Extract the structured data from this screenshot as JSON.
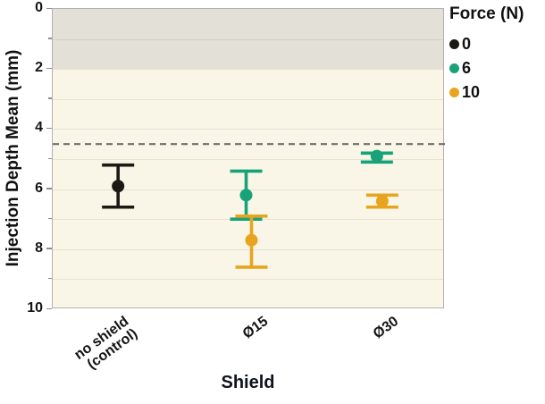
{
  "figure": {
    "y_axis_title": "Injection Depth Mean (mm)",
    "x_axis_title": "Shield",
    "legend_title": "Force (N)"
  },
  "chart_data": {
    "type": "scatter",
    "subtype": "means_with_error_bars",
    "title": "",
    "xlabel": "Shield",
    "ylabel": "Injection Depth Mean (mm)",
    "categories": [
      "no shield\n(control)",
      "Ø15",
      "Ø30"
    ],
    "y_axis_reversed": true,
    "ylim": [
      0,
      10
    ],
    "yticks": [
      0,
      2,
      4,
      6,
      8,
      10
    ],
    "gridlines_every": 1,
    "shaded_band_y": [
      0,
      2
    ],
    "reference_line_y": 4.5,
    "legend_title": "Force (N)",
    "legend_position": "right-top",
    "legend_entries": [
      "0",
      "6",
      "10"
    ],
    "series": [
      {
        "name": "0",
        "color": "#1c1914",
        "points": [
          {
            "category": "no shield (control)",
            "category_index": 0,
            "mean": 5.9,
            "ci_low": 5.2,
            "ci_high": 6.6
          }
        ]
      },
      {
        "name": "6",
        "color": "#17a277",
        "points": [
          {
            "category": "Ø15",
            "category_index": 1,
            "mean": 6.2,
            "ci_low": 5.4,
            "ci_high": 7.0
          },
          {
            "category": "Ø30",
            "category_index": 2,
            "mean": 4.9,
            "ci_low": 4.8,
            "ci_high": 5.1
          }
        ]
      },
      {
        "name": "10",
        "color": "#e9a41f",
        "points": [
          {
            "category": "Ø15",
            "category_index": 1,
            "mean": 7.7,
            "ci_low": 6.9,
            "ci_high": 8.6
          },
          {
            "category": "Ø30",
            "category_index": 2,
            "mean": 6.4,
            "ci_low": 6.2,
            "ci_high": 6.6
          }
        ]
      }
    ],
    "colors": {
      "plot_background": "#f9f6e8",
      "shaded_band": "#e3e0d8",
      "gridline": "#e9e6d7",
      "frame": "#b3b1ac",
      "reference_line": "#6f6f6f",
      "text": "#141414"
    }
  }
}
